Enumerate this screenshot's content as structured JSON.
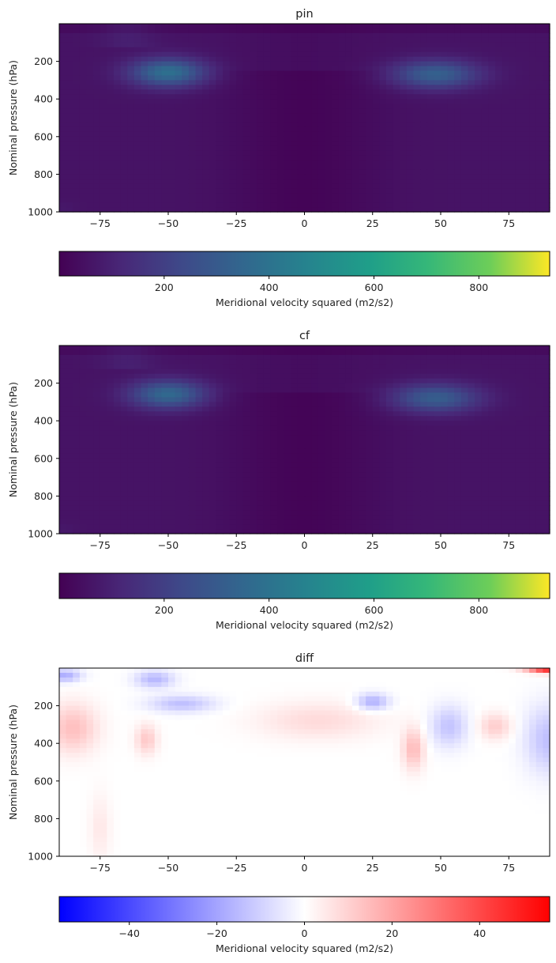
{
  "chart_data": [
    {
      "type": "heatmap",
      "title": "pin",
      "xlabel": "",
      "ylabel": "Nominal pressure (hPa)",
      "x_ticks": [
        -75,
        -50,
        -25,
        0,
        25,
        50,
        75
      ],
      "y_ticks": [
        200,
        400,
        600,
        800,
        1000
      ],
      "xlim": [
        -90,
        90
      ],
      "ylim": [
        1000,
        0
      ],
      "colormap": "viridis",
      "colorbar": {
        "label": "Meridional velocity squared (m2/s2)",
        "range": [
          0,
          935
        ],
        "ticks": [
          200,
          400,
          600,
          800
        ]
      },
      "features": [
        {
          "lat": -50,
          "p": 260,
          "value": 330,
          "lat_width": 14,
          "p_width": 75,
          "label": "southern upper-level maximum"
        },
        {
          "lat": 48,
          "p": 270,
          "value": 270,
          "lat_width": 16,
          "p_width": 75,
          "label": "northern upper-level maximum"
        }
      ]
    },
    {
      "type": "heatmap",
      "title": "cf",
      "xlabel": "",
      "ylabel": "Nominal pressure (hPa)",
      "x_ticks": [
        -75,
        -50,
        -25,
        0,
        25,
        50,
        75
      ],
      "y_ticks": [
        200,
        400,
        600,
        800,
        1000
      ],
      "xlim": [
        -90,
        90
      ],
      "ylim": [
        1000,
        0
      ],
      "colormap": "viridis",
      "colorbar": {
        "label": "Meridional velocity squared (m2/s2)",
        "range": [
          0,
          935
        ],
        "ticks": [
          200,
          400,
          600,
          800
        ]
      },
      "features": [
        {
          "lat": -50,
          "p": 260,
          "value": 300,
          "lat_width": 14,
          "p_width": 75,
          "label": "southern upper-level maximum"
        },
        {
          "lat": 48,
          "p": 280,
          "value": 260,
          "lat_width": 16,
          "p_width": 75,
          "label": "northern upper-level maximum"
        }
      ]
    },
    {
      "type": "heatmap",
      "title": "diff",
      "xlabel": "",
      "ylabel": "Nominal pressure (hPa)",
      "x_ticks": [
        -75,
        -50,
        -25,
        0,
        25,
        50,
        75
      ],
      "y_ticks": [
        200,
        400,
        600,
        800,
        1000
      ],
      "xlim": [
        -90,
        90
      ],
      "ylim": [
        1000,
        0
      ],
      "colormap": "bwr",
      "colorbar": {
        "label": "Meridional velocity squared (m2/s2)",
        "range": [
          -56,
          56
        ],
        "ticks": [
          -40,
          -20,
          0,
          20,
          40
        ]
      },
      "features": [
        {
          "lat": -45,
          "p": 190,
          "value": -14,
          "lat_width": 12,
          "p_width": 45
        },
        {
          "lat": 25,
          "p": 180,
          "value": -18,
          "lat_width": 6,
          "p_width": 45
        },
        {
          "lat": 53,
          "p": 310,
          "value": -13,
          "lat_width": 7,
          "p_width": 110
        },
        {
          "lat": 90,
          "p": 380,
          "value": -14,
          "lat_width": 9,
          "p_width": 180
        },
        {
          "lat": -55,
          "p": 60,
          "value": -16,
          "lat_width": 7,
          "p_width": 45
        },
        {
          "lat": -88,
          "p": 40,
          "value": -18,
          "lat_width": 6,
          "p_width": 35
        },
        {
          "lat": -85,
          "p": 320,
          "value": 14,
          "lat_width": 9,
          "p_width": 130
        },
        {
          "lat": -58,
          "p": 380,
          "value": 12,
          "lat_width": 4,
          "p_width": 80
        },
        {
          "lat": 5,
          "p": 280,
          "value": 8,
          "lat_width": 22,
          "p_width": 100
        },
        {
          "lat": 40,
          "p": 430,
          "value": 15,
          "lat_width": 4,
          "p_width": 110
        },
        {
          "lat": 70,
          "p": 310,
          "value": 11,
          "lat_width": 6,
          "p_width": 70
        },
        {
          "lat": 90,
          "p": 10,
          "value": 45,
          "lat_width": 8,
          "p_width": 18
        },
        {
          "lat": -75,
          "p": 850,
          "value": 5,
          "lat_width": 4,
          "p_width": 180
        }
      ]
    }
  ]
}
